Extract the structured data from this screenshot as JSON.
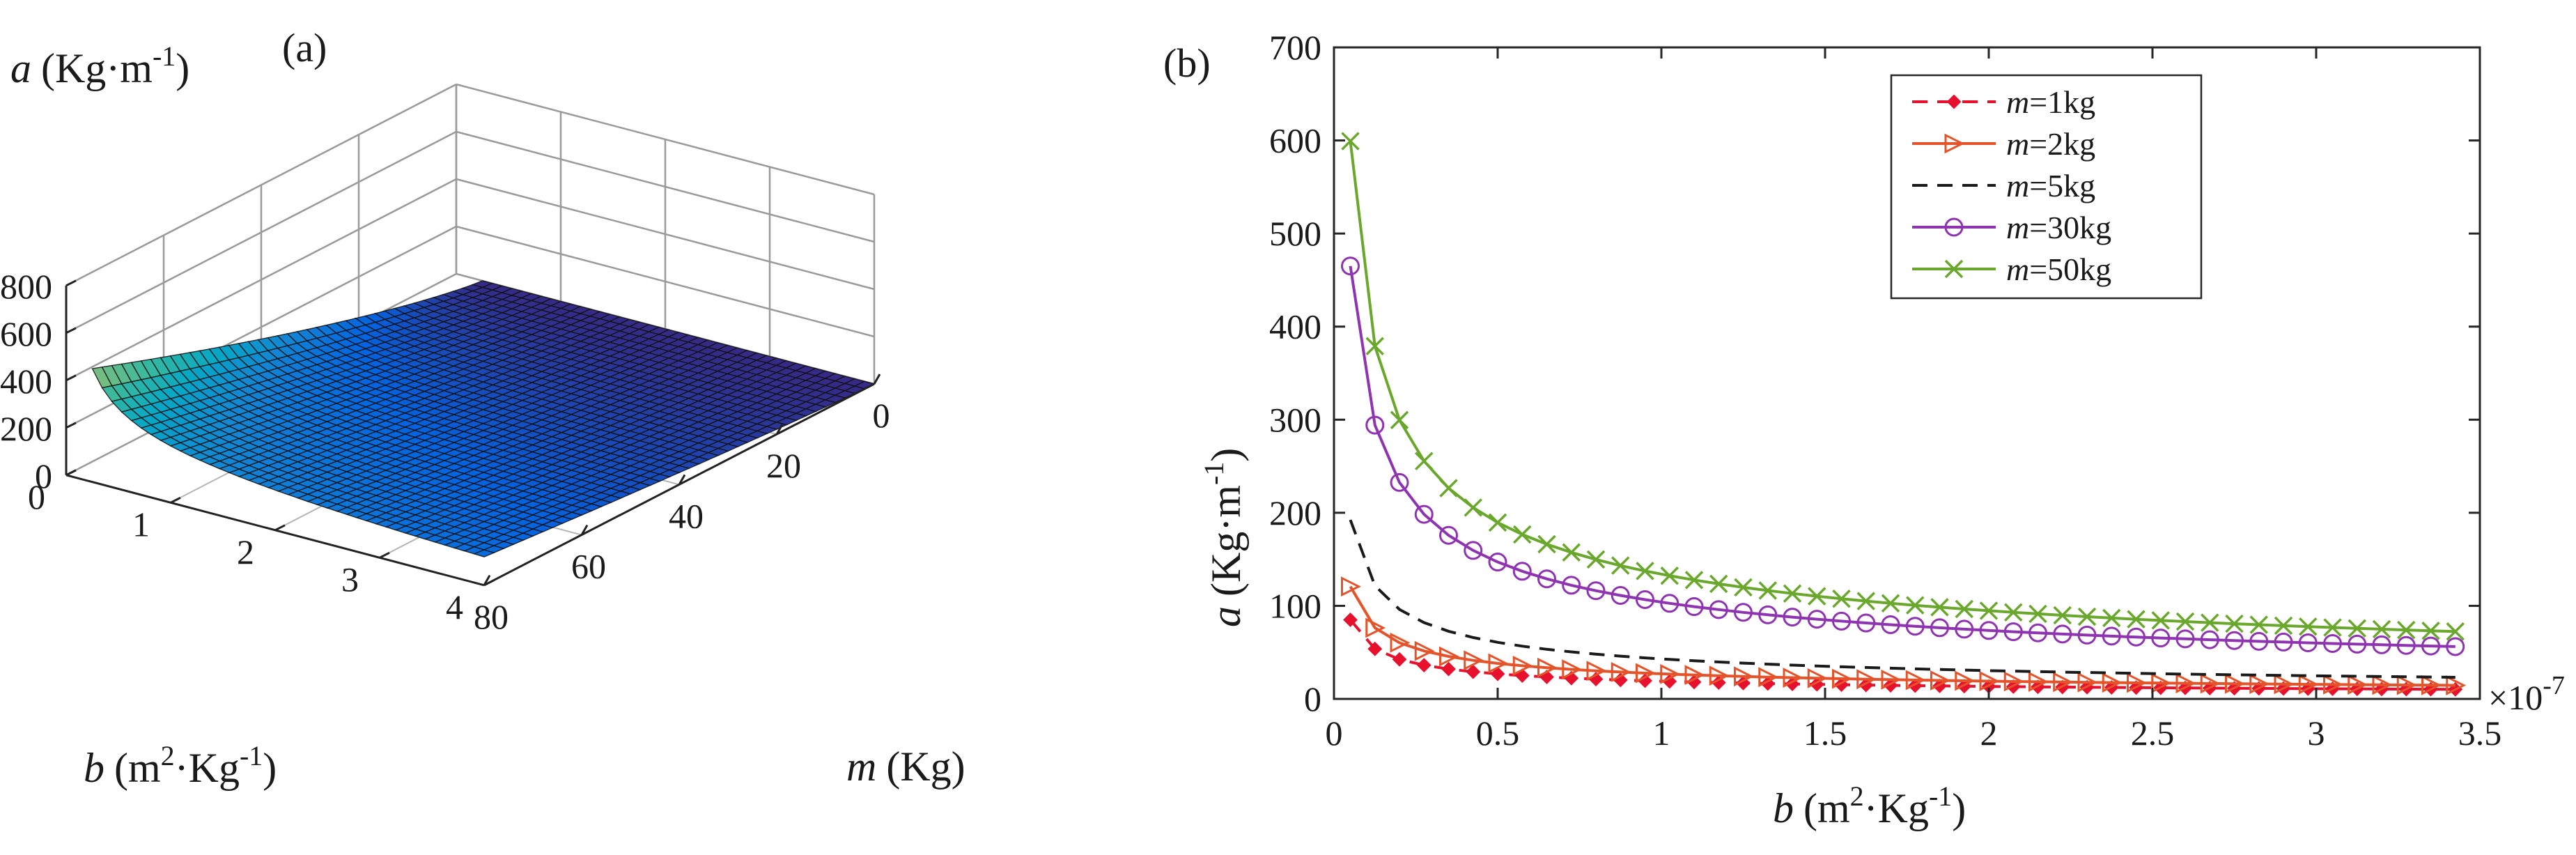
{
  "chart_data": [
    {
      "panel": "(a)",
      "type": "surface",
      "zlabel": {
        "var": "a",
        "unit": "(Kg·m",
        "exp": "-1",
        "close": ")"
      },
      "ylabel": {
        "var": "b",
        "unit": "(m",
        "sq": "2",
        "mid": "·Kg",
        "exp": "-1",
        "close": ")"
      },
      "xlabel": {
        "var": "m",
        "unit": "(Kg)"
      },
      "z_ticks": [
        "0",
        "200",
        "400",
        "600",
        "800"
      ],
      "b_ticks": [
        "0",
        "1",
        "2",
        "3",
        "4"
      ],
      "m_ticks": [
        "80",
        "60",
        "40",
        "20",
        "0"
      ],
      "z_range": [
        0,
        800
      ],
      "b_range": [
        0,
        4
      ],
      "m_range": [
        0,
        80
      ],
      "colormap": [
        "#352a87",
        "#0363e1",
        "#1485d4",
        "#06a7c6",
        "#38b99e",
        "#92bf73",
        "#d9ba56",
        "#fcce2e",
        "#f9fb0e"
      ],
      "grid": true
    },
    {
      "panel": "(b)",
      "type": "line",
      "xlabel": {
        "var": "b",
        "unit": "(m",
        "sq": "2",
        "mid": "·Kg",
        "exp": "-1",
        "close": ")"
      },
      "ylabel": {
        "var": "a",
        "unit": "(Kg·m",
        "exp": "-1",
        "close": ")"
      },
      "x_exponent": {
        "base": "×10",
        "exp": "-7"
      },
      "xlim": [
        0,
        3.5
      ],
      "ylim": [
        0,
        700
      ],
      "x_ticks": [
        "0",
        "0.5",
        "1",
        "1.5",
        "2",
        "2.5",
        "3",
        "3.5"
      ],
      "y_ticks": [
        "0",
        "100",
        "200",
        "300",
        "400",
        "500",
        "600",
        "700"
      ],
      "legend_position": "top-right",
      "series": [
        {
          "name": "m=1kg",
          "var": "m",
          "rest": "=1kg",
          "color": "#e8112d",
          "line": "dashed",
          "marker": "diamond",
          "k": 19
        },
        {
          "name": "m=2kg",
          "var": "m",
          "rest": "=2kg",
          "color": "#e5532a",
          "line": "solid",
          "marker": "triangle-right",
          "k": 27
        },
        {
          "name": "m=5kg",
          "var": "m",
          "rest": "=5kg",
          "color": "#1a1a1a",
          "line": "dashed",
          "marker": "none",
          "k": 43
        },
        {
          "name": "m=30kg",
          "var": "m",
          "rest": "=30kg",
          "color": "#8e34b0",
          "line": "solid",
          "marker": "circle",
          "k": 104
        },
        {
          "name": "m=50kg",
          "var": "m",
          "rest": "=50kg",
          "color": "#6aa72d",
          "line": "solid",
          "marker": "x",
          "k": 134
        }
      ]
    }
  ]
}
